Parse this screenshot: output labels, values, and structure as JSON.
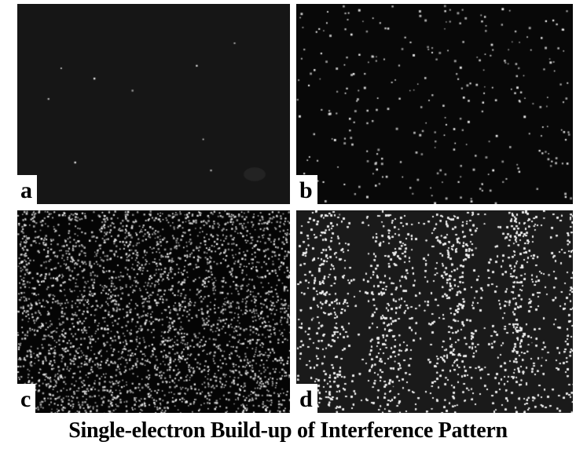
{
  "figure": {
    "caption": "Single-electron Build-up of Interference Pattern",
    "panels": [
      {
        "label": "a",
        "stage": "sparse"
      },
      {
        "label": "b",
        "stage": "few hundred"
      },
      {
        "label": "c",
        "stage": "thousands"
      },
      {
        "label": "d",
        "stage": "fringes"
      }
    ]
  },
  "colors": {
    "background": "#ffffff",
    "screen": "#0b0b0b",
    "electron": "#f2f2f2",
    "text": "#000000"
  }
}
